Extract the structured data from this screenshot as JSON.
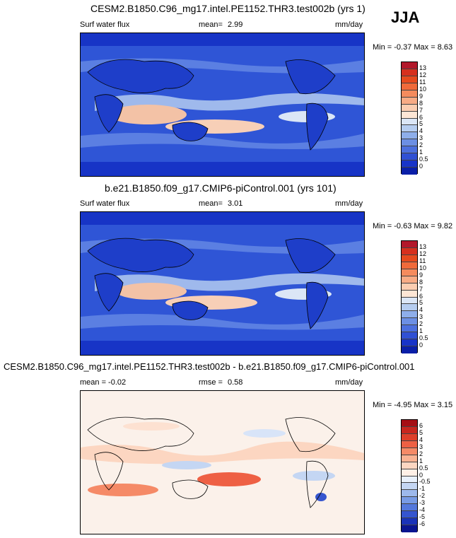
{
  "season": "JJA",
  "panels": [
    {
      "title": "CESM2.B1850.C96_mg17.intel.PE1152.THR3.test002b (yrs 1)",
      "left_label": "Surf water flux",
      "stat_label": "mean=",
      "stat_value": "2.99",
      "units": "mm/day",
      "minmax": "Min =  -0.37 Max =   8.63"
    },
    {
      "title": "b.e21.B1850.f09_g17.CMIP6-piControl.001 (yrs 101)",
      "left_label": "Surf water flux",
      "stat_label": "mean=",
      "stat_value": "3.01",
      "units": "mm/day",
      "minmax": "Min =  -0.63 Max =   9.82"
    },
    {
      "title": "CESM2.B1850.C96_mg17.intel.PE1152.THR3.test002b - b.e21.B1850.f09_g17.CMIP6-piControl.001",
      "left_label": "mean =  -0.02",
      "stat_label": "rmse =",
      "stat_value": "0.58",
      "units": "mm/day",
      "minmax": "Min =  -4.95 Max =   3.15"
    }
  ],
  "colorbars": {
    "seq_labels": [
      "13",
      "12",
      "11",
      "10",
      "9",
      "8",
      "7",
      "6",
      "5",
      "4",
      "3",
      "2",
      "1",
      "0.5",
      "0"
    ],
    "seq_colors": [
      "#b2182b",
      "#d6301e",
      "#e64a1e",
      "#f06a3a",
      "#f58b5d",
      "#f8ab85",
      "#fbcdb1",
      "#fde6d5",
      "#dbe6f6",
      "#b6cdf0",
      "#8eaeea",
      "#6c8fe4",
      "#4c6fde",
      "#3050d4",
      "#1834c8",
      "#0a1fa8"
    ],
    "diff_labels": [
      "6",
      "5",
      "4",
      "3",
      "2",
      "1",
      "0.5",
      "0",
      "-0.5",
      "-1",
      "-2",
      "-3",
      "-4",
      "-5",
      "-6"
    ],
    "diff_colors": [
      "#a50f15",
      "#c8261e",
      "#de3f2a",
      "#ee6044",
      "#f58a67",
      "#f9b293",
      "#fcd6c1",
      "#fff0e6",
      "#e8f0fb",
      "#c4d6f3",
      "#9db9ec",
      "#789be5",
      "#5478dc",
      "#3555cf",
      "#1a33b8",
      "#0a1590"
    ]
  }
}
